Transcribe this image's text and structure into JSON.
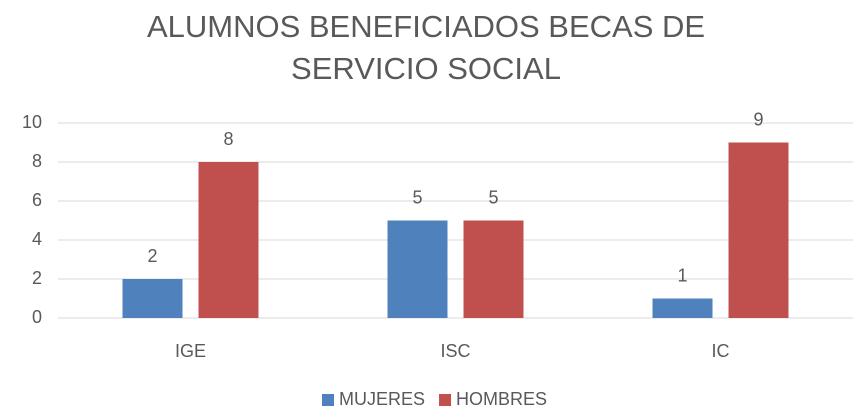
{
  "chart_data": {
    "type": "bar",
    "title": "ALUMNOS BENEFICIADOS BECAS DE SERVICIO SOCIAL",
    "categories": [
      "IGE",
      "ISC",
      "IC"
    ],
    "series": [
      {
        "name": "MUJERES",
        "color": "#4f81bd",
        "values": [
          2,
          5,
          1
        ]
      },
      {
        "name": "HOMBRES",
        "color": "#c0504d",
        "values": [
          8,
          5,
          9
        ]
      }
    ],
    "ylim": [
      0,
      10
    ],
    "yticks": [
      0,
      2,
      4,
      6,
      8,
      10
    ],
    "grid": true,
    "legend": "bottom"
  }
}
